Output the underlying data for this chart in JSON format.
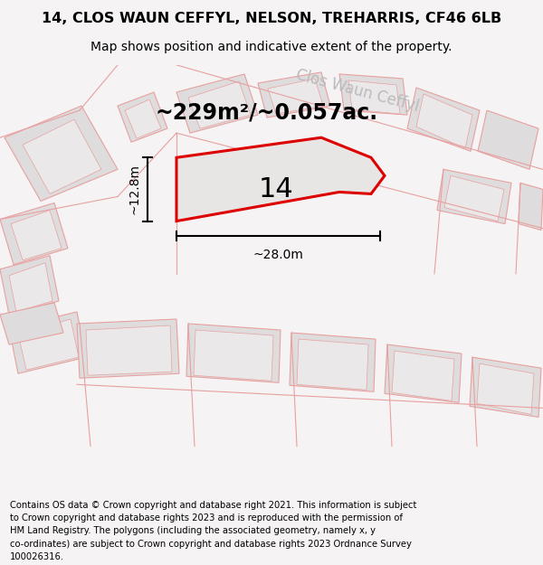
{
  "title": "14, CLOS WAUN CEFFYL, NELSON, TREHARRIS, CF46 6LB",
  "subtitle": "Map shows position and indicative extent of the property.",
  "footer_lines": [
    "Contains OS data © Crown copyright and database right 2021. This information is subject",
    "to Crown copyright and database rights 2023 and is reproduced with the permission of",
    "HM Land Registry. The polygons (including the associated geometry, namely x, y",
    "co-ordinates) are subject to Crown copyright and database rights 2023 Ordnance Survey",
    "100026316."
  ],
  "area_text": "~229m²/~0.057ac.",
  "width_label": "~28.0m",
  "height_label": "~12.8m",
  "plot_number": "14",
  "map_bg": "#f5f3f3",
  "plot_fill": "#e8e5e5",
  "plot_edge_color": "#dd0000",
  "other_plots_fill": "#dedcdc",
  "other_plots_inner_fill": "#eae8e8",
  "other_plots_edge": "#e8a0a0",
  "road_label": "Clos Waun Ceffyl",
  "road_label_color": "#bbbbbb"
}
